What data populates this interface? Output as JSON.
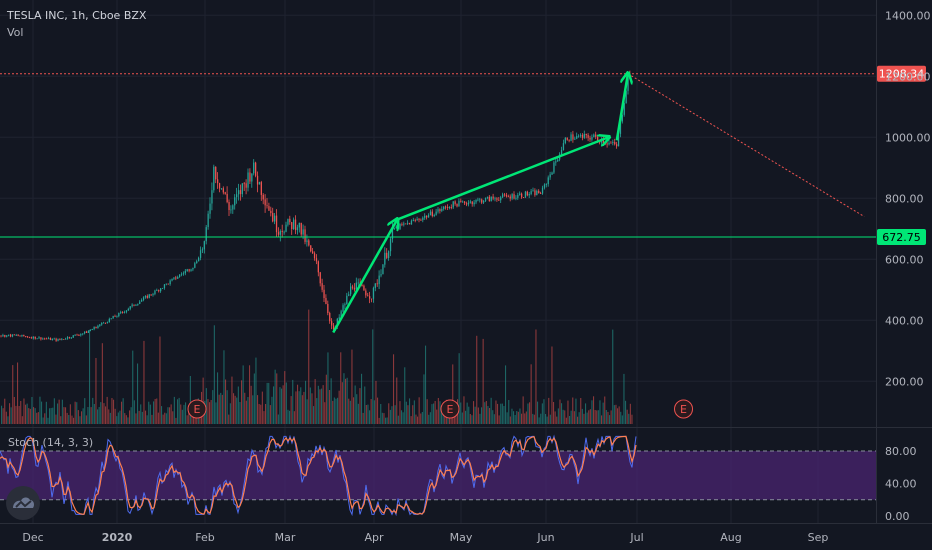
{
  "header": {
    "title": "TESLA INC, 1h, Cboe BZX",
    "volume_label": "Vol"
  },
  "stoch_label": "Stoch (14, 3, 3)",
  "colors": {
    "background": "#131722",
    "up": "#26a69a",
    "down": "#ef5350",
    "annotation": "#00e676",
    "resistance_line": "#ef5350",
    "support_line": "#00e676",
    "stoch_band": "#4a2470",
    "stoch_k": "#4f6cf0",
    "stoch_d": "#ff7f50"
  },
  "chart_data": [
    {
      "type": "candlestick",
      "title": "TESLA INC, 1h, Cboe BZX",
      "x_ticks": [
        "Dec",
        "2020",
        "Feb",
        "Mar",
        "Apr",
        "May",
        "Jun",
        "Jul",
        "Aug",
        "Sep"
      ],
      "y_ticks": [
        "1400.00",
        "1200.00",
        "1000.00",
        "800.00",
        "600.00",
        "400.00",
        "200.00"
      ],
      "ylim": [
        50,
        1450
      ],
      "grid": true,
      "price_path": [
        [
          "Nov 25",
          350
        ],
        [
          "Dec 10",
          335
        ],
        [
          "Dec 20",
          360
        ],
        [
          "Jan 1",
          420
        ],
        [
          "Jan 15",
          500
        ],
        [
          "Jan 28",
          580
        ],
        [
          "Feb 1",
          660
        ],
        [
          "Feb 4",
          900
        ],
        [
          "Feb 10",
          760
        ],
        [
          "Feb 18",
          900
        ],
        [
          "Feb 27",
          700
        ],
        [
          "Mar 5",
          720
        ],
        [
          "Mar 12",
          580
        ],
        [
          "Mar 18",
          360
        ],
        [
          "Mar 25",
          520
        ],
        [
          "Apr 1",
          480
        ],
        [
          "Apr 9",
          700
        ],
        [
          "Apr 20",
          740
        ],
        [
          "Apr 30",
          780
        ],
        [
          "May 15",
          800
        ],
        [
          "Jun 1",
          820
        ],
        [
          "Jun 10",
          1000
        ],
        [
          "Jun 20",
          1000
        ],
        [
          "Jun 28",
          970
        ],
        [
          "Jul 2",
          1200
        ]
      ],
      "horizontal_lines": [
        {
          "value": 1208.34,
          "label": "1208.34",
          "color": "#ef5350",
          "style": "dotted"
        },
        {
          "value": 672.75,
          "label": "672.75",
          "color": "#00e676",
          "style": "solid"
        }
      ],
      "trend_projection": {
        "from": [
          "Jul 2",
          1208.34
        ],
        "to": [
          "Sep 25",
          740
        ]
      },
      "annotations": [
        {
          "type": "arrow",
          "from": [
            "Mar 18",
            360
          ],
          "to": [
            "Apr 10",
            730
          ]
        },
        {
          "type": "arrow",
          "from": [
            "Apr 10",
            730
          ],
          "to": [
            "Jun 25",
            1000
          ]
        },
        {
          "type": "arrow",
          "from": [
            "Jun 28",
            990
          ],
          "to": [
            "Jul 2",
            1208
          ]
        }
      ],
      "earnings_markers": [
        {
          "date": "Jan 29",
          "label": "E"
        },
        {
          "date": "Apr 29",
          "label": "E"
        },
        {
          "date": "Jul 22",
          "label": "E"
        }
      ]
    },
    {
      "type": "line",
      "title": "Stoch (14, 3, 3)",
      "y_ticks": [
        "80.00",
        "40.00",
        "0.00"
      ],
      "ylim": [
        0,
        100
      ],
      "band": [
        20,
        80
      ],
      "last_value": 86
    }
  ]
}
